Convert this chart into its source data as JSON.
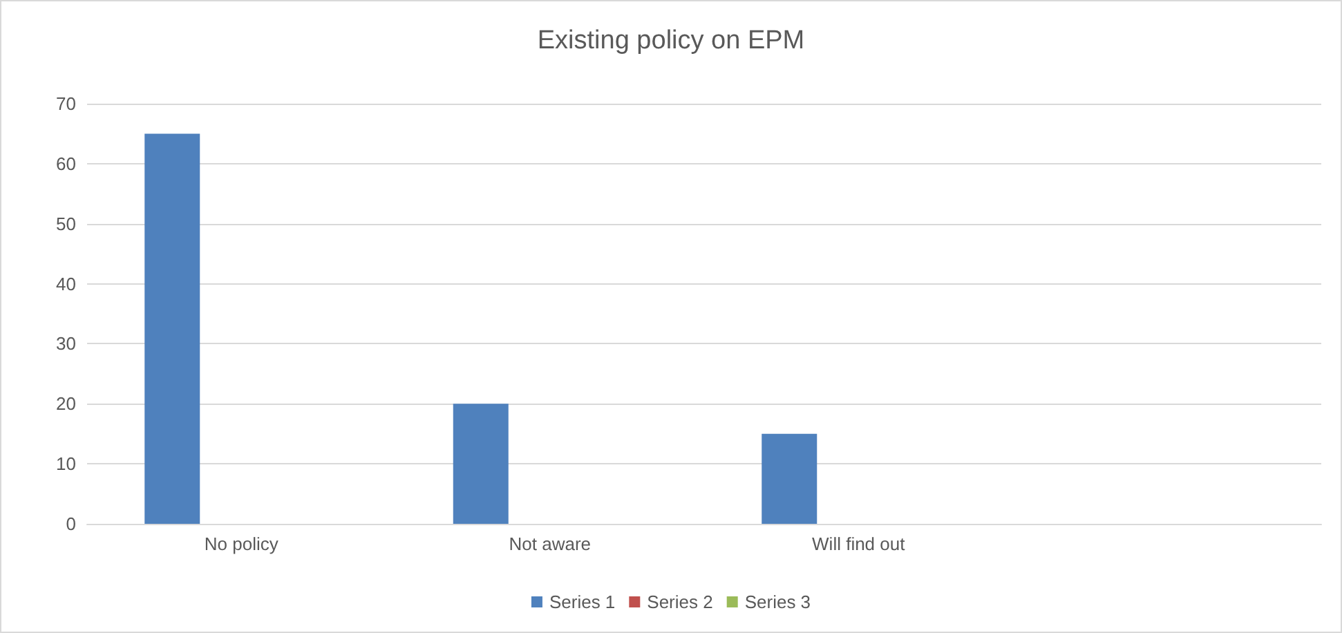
{
  "chart_data": {
    "type": "bar",
    "title": "Existing policy on EPM",
    "categories": [
      "No policy",
      "Not aware",
      "Will find out",
      null
    ],
    "series": [
      {
        "name": "Series 1",
        "color": "#4f81bd",
        "values": [
          65,
          20,
          15,
          null
        ]
      },
      {
        "name": "Series 2",
        "color": "#c0504d",
        "values": [
          null,
          null,
          null,
          null
        ]
      },
      {
        "name": "Series 3",
        "color": "#9bbb59",
        "values": [
          null,
          null,
          null,
          null
        ]
      }
    ],
    "ylim": [
      0,
      70
    ],
    "yticks": [
      0,
      10,
      20,
      30,
      40,
      50,
      60,
      70
    ],
    "grid": "y",
    "legend": "bottom"
  }
}
